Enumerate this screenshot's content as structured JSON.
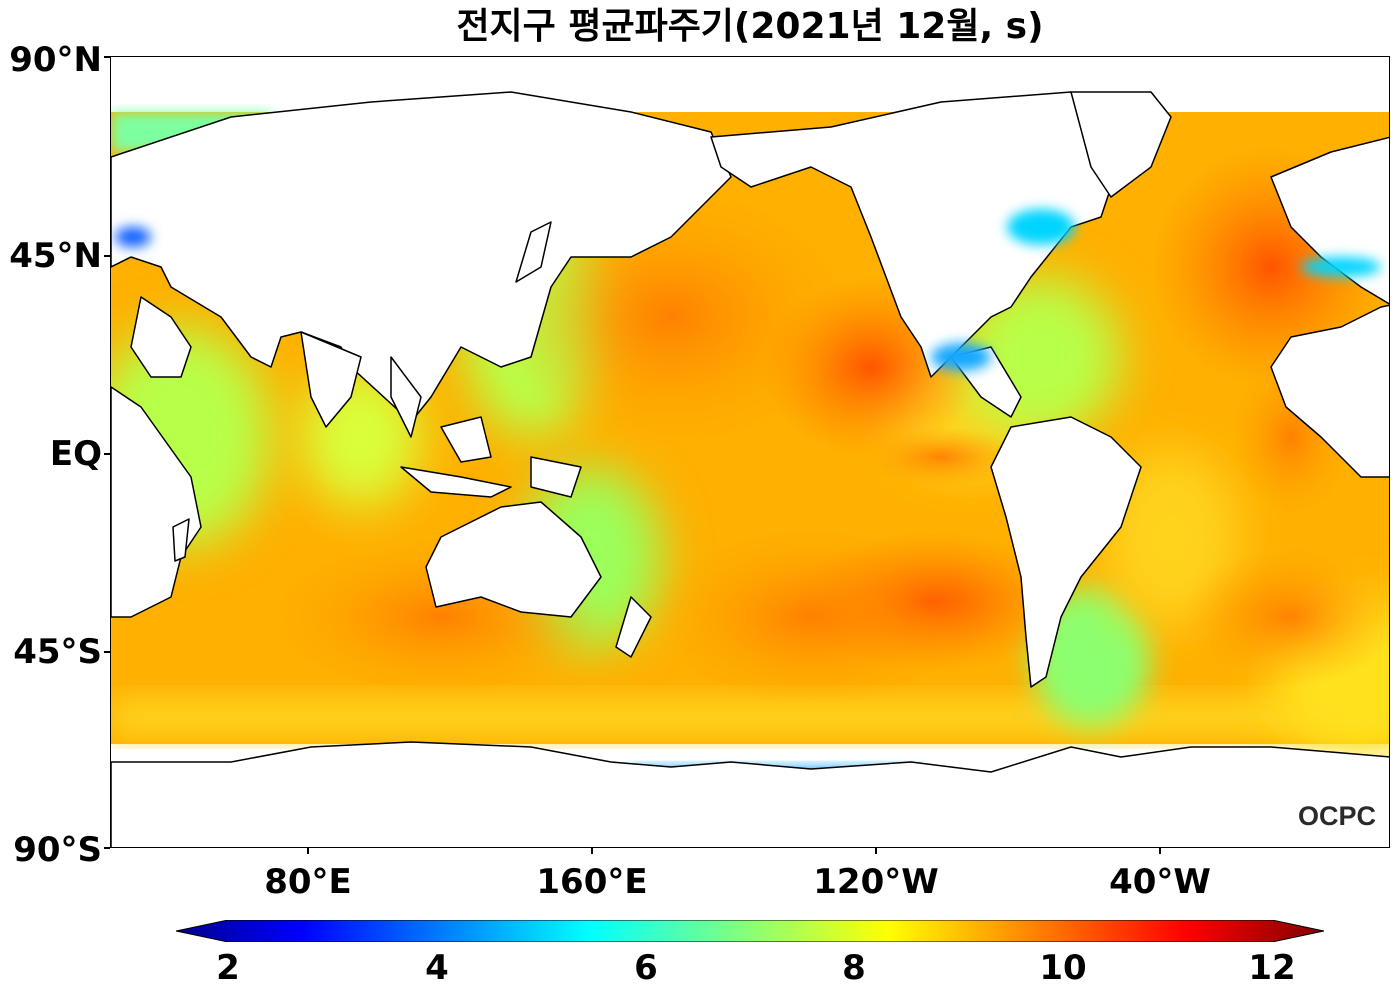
{
  "title": "전지구 평균파주기(2021년 12월, s)",
  "map": {
    "lat_labels": [
      "90°N",
      "45°N",
      "EQ",
      "45°S",
      "90°S"
    ],
    "lon_labels": [
      "80°E",
      "160°E",
      "120°W",
      "40°W"
    ],
    "logo": "OCPC",
    "land_color": "#ffffff",
    "coast_color": "#000000"
  },
  "colorbar": {
    "colormap": "jet",
    "min": 2,
    "max": 12,
    "extend": "both",
    "tick_labels": [
      "2",
      "4",
      "6",
      "8",
      "10",
      "12"
    ]
  },
  "chart_data": {
    "type": "heatmap",
    "title": "전지구 평균파주기(2021년 12월, s)",
    "variable": "mean wave period",
    "unit": "s",
    "period": "2021년 12월",
    "value_range": [
      2,
      12
    ]
  }
}
